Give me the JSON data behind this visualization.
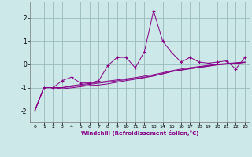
{
  "x": [
    0,
    1,
    2,
    3,
    4,
    5,
    6,
    7,
    8,
    9,
    10,
    11,
    12,
    13,
    14,
    15,
    16,
    17,
    18,
    19,
    20,
    21,
    22,
    23
  ],
  "y_main": [
    -2.0,
    -1.0,
    -1.0,
    -0.7,
    -0.55,
    -0.8,
    -0.8,
    -0.7,
    -0.05,
    0.3,
    0.3,
    -0.15,
    0.55,
    2.3,
    1.0,
    0.5,
    0.1,
    0.3,
    0.1,
    0.05,
    0.1,
    0.15,
    -0.2,
    0.3
  ],
  "y_line1": [
    -2.0,
    -1.0,
    -1.0,
    -1.0,
    -0.92,
    -0.87,
    -0.82,
    -0.77,
    -0.72,
    -0.67,
    -0.62,
    -0.57,
    -0.5,
    -0.44,
    -0.36,
    -0.27,
    -0.2,
    -0.14,
    -0.09,
    -0.04,
    0.01,
    0.04,
    0.07,
    0.1
  ],
  "y_line2": [
    -2.0,
    -1.0,
    -1.0,
    -1.0,
    -0.96,
    -0.91,
    -0.86,
    -0.81,
    -0.76,
    -0.71,
    -0.66,
    -0.61,
    -0.55,
    -0.49,
    -0.41,
    -0.31,
    -0.25,
    -0.19,
    -0.13,
    -0.08,
    -0.02,
    0.01,
    0.04,
    0.08
  ],
  "y_line3": [
    -2.0,
    -1.0,
    -1.0,
    -1.05,
    -1.01,
    -0.96,
    -0.91,
    -0.89,
    -0.84,
    -0.77,
    -0.7,
    -0.64,
    -0.57,
    -0.5,
    -0.4,
    -0.3,
    -0.24,
    -0.18,
    -0.12,
    -0.07,
    -0.01,
    0.02,
    0.05,
    0.09
  ],
  "color": "#880088",
  "bg_color": "#cce8e8",
  "grid_color": "#99bbbb",
  "xlabel": "Windchill (Refroidissement éolien,°C)",
  "ylim": [
    -2.5,
    2.7
  ],
  "xlim": [
    -0.5,
    23.5
  ],
  "yticks": [
    -2,
    -1,
    0,
    1,
    2
  ],
  "xticks": [
    0,
    1,
    2,
    3,
    4,
    5,
    6,
    7,
    8,
    9,
    10,
    11,
    12,
    13,
    14,
    15,
    16,
    17,
    18,
    19,
    20,
    21,
    22,
    23
  ]
}
